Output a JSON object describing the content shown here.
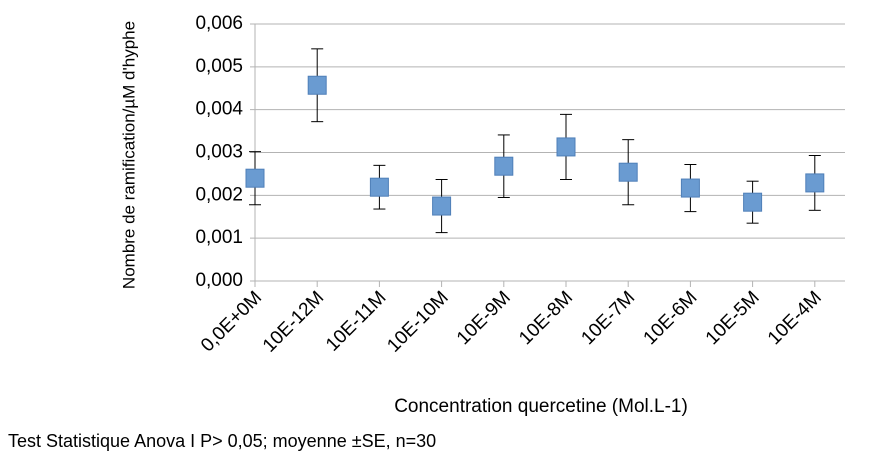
{
  "chart_data": {
    "type": "scatter",
    "y_label": "Nombre de ramification/µM d'hyphe",
    "x_label": "Concentration quercetine (Mol.L-1)",
    "note": "Test Statistique Anova I P> 0,05; moyenne ±SE, n=30",
    "categories": [
      "0,0E+0M",
      "10E-12M",
      "10E-11M",
      "10E-10M",
      "10E-9M",
      "10E-8M",
      "10E-7M",
      "10E-6M",
      "10E-5M",
      "10E-4M"
    ],
    "values": [
      0.0024,
      0.00457,
      0.00219,
      0.00175,
      0.00268,
      0.00313,
      0.00254,
      0.00217,
      0.00184,
      0.00229
    ],
    "errors": [
      0.00062,
      0.00085,
      0.00051,
      0.00062,
      0.00073,
      0.00076,
      0.00076,
      0.00055,
      0.00049,
      0.00064
    ],
    "color": "#6a9bd1",
    "ylim": [
      0,
      0.006
    ],
    "yticks": [
      {
        "value": 0,
        "label": "0,000"
      },
      {
        "value": 0.001,
        "label": "0,001"
      },
      {
        "value": 0.002,
        "label": "0,002"
      },
      {
        "value": 0.003,
        "label": "0,003"
      },
      {
        "value": 0.004,
        "label": "0,004"
      },
      {
        "value": 0.005,
        "label": "0,005"
      },
      {
        "value": 0.006,
        "label": "0,006"
      }
    ],
    "grid": true
  }
}
